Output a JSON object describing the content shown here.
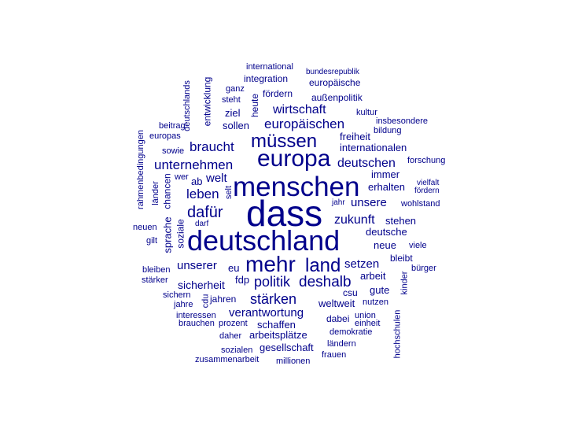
{
  "word_color": "#00008B",
  "background": "#FFFFFF",
  "words": [
    "dass",
    "deutschland",
    "menschen",
    "europa",
    "müssen",
    "mehr",
    "land",
    "dafür",
    "politik",
    "deshalb",
    "stärken",
    "europäischen",
    "braucht",
    "unternehmen",
    "deutschen",
    "wirtschaft",
    "leben",
    "welt",
    "zukunft",
    "unsere",
    "unserer",
    "verantwortung",
    "setzen",
    "sicherheit",
    "weltweit",
    "internationalen",
    "europäische",
    "integration",
    "außenpolitik",
    "arbeit",
    "entwicklung",
    "sprache",
    "chancen",
    "soziale",
    "deutschlands",
    "rahmenbedingungen",
    "länder",
    "heute",
    "ziel",
    "sollen",
    "fördern",
    "steht",
    "ganz",
    "international",
    "bundesrepublik",
    "kultur",
    "beitrag",
    "europas",
    "sowie",
    "insbesondere",
    "bildung",
    "freiheit",
    "forschung",
    "wer",
    "ab",
    "selt",
    "immer",
    "erhalten",
    "vielfalt",
    "fördern",
    "wohlstand",
    "jahr",
    "stehen",
    "deutsche",
    "neuen",
    "darf",
    "gilt",
    "neue",
    "viele",
    "bleibt",
    "bürger",
    "bleiben",
    "stärker",
    "eu",
    "fdp",
    "gute",
    "kinder",
    "csu",
    "sichern",
    "jahre",
    "cdu",
    "jahren",
    "nutzen",
    "interessen",
    "dabei",
    "union",
    "brauchen",
    "prozent",
    "schaffen",
    "einheit",
    "hochschulen",
    "demokratie",
    "daher",
    "arbeitsplätze",
    "gesellschaft",
    "ländern",
    "sozialen",
    "frauen",
    "zusammenarbeit",
    "millionen"
  ]
}
